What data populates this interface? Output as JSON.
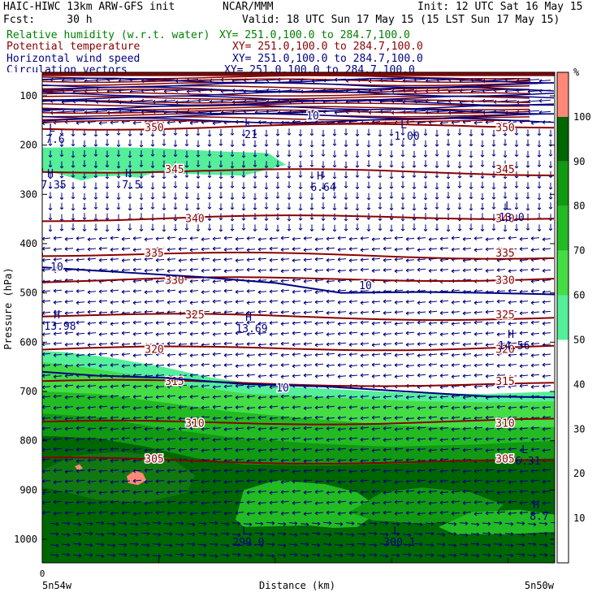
{
  "header": {
    "title_left": "HAIC-HIWC 13km ARW-GFS init",
    "org": "NCAR/MMM",
    "init": "Init: 12 UTC Sat 16 May 15",
    "fcst": "Fcst:     30 h",
    "valid": "Valid: 18 UTC Sun 17 May 15 (15 LST Sun 17 May 15)",
    "fields": [
      {
        "label": "Relative humidity (w.r.t. water)",
        "xy": "XY= 251.0,100.0 to 284.7,100.0",
        "color": "#008000"
      },
      {
        "label": "Potential temperature",
        "xy": "XY= 251.0,100.0 to 284.7,100.0",
        "color": "#8b0000"
      },
      {
        "label": "Horizontal wind speed",
        "xy": "XY= 251.0,100.0 to 284.7,100.0",
        "color": "#000080"
      },
      {
        "label": "Circulation vectors",
        "xy": "XY= 251.0,100.0 to 284.7,100.0",
        "color": "#000080"
      }
    ]
  },
  "chart_data": {
    "type": "heatmap",
    "title": "Relative humidity (w.r.t. water) cross section",
    "xlabel": "Distance (km)",
    "ylabel": "Pressure (hPa)",
    "x_start_label": "5n54w",
    "x_end_label": "5n50w",
    "x_zero": "0",
    "ylim": [
      1050,
      50
    ],
    "y_ticks": [
      100,
      200,
      300,
      400,
      500,
      600,
      700,
      800,
      900,
      1000
    ],
    "colorbar": {
      "unit": "%",
      "levels": [
        10,
        20,
        30,
        40,
        50,
        60,
        70,
        80,
        90,
        100
      ],
      "colors": [
        "#ffffff",
        "#ffffff",
        "#ffffff",
        "#ffffff",
        "#ffffff",
        "#55ee99",
        "#44dd44",
        "#22bb22",
        "#119911",
        "#006600",
        "#ff8877"
      ]
    },
    "theta_contours": [
      {
        "value": 350,
        "p": 165,
        "label": "350"
      },
      {
        "value": 345,
        "p": 250,
        "label": "345"
      },
      {
        "value": 340,
        "p": 350,
        "label": "340"
      },
      {
        "value": 335,
        "p": 420,
        "label": "335"
      },
      {
        "value": 330,
        "p": 475,
        "label": "330"
      },
      {
        "value": 325,
        "p": 545,
        "label": "325"
      },
      {
        "value": 320,
        "p": 615,
        "label": "320"
      },
      {
        "value": 315,
        "p": 680,
        "label": "315"
      },
      {
        "value": 310,
        "p": 765,
        "label": "310"
      },
      {
        "value": 305,
        "p": 838,
        "label": "305"
      }
    ],
    "wind_contours": [
      {
        "value": 10,
        "label": "10"
      }
    ],
    "annotations": [
      {
        "text": "H",
        "sub": "7.35"
      },
      {
        "text": "H",
        "sub": "7.5"
      },
      {
        "text": "H",
        "sub": "6.64"
      },
      {
        "text": "L",
        "sub": "7.6"
      },
      {
        "text": "L",
        "sub": "21"
      },
      {
        "text": "L",
        "sub": "1.00"
      },
      {
        "text": "L",
        "sub": "13.0"
      },
      {
        "text": "H",
        "sub": "13.98"
      },
      {
        "text": "H",
        "sub": "13.69"
      },
      {
        "text": "H",
        "sub": "14.56"
      },
      {
        "text": "L",
        "sub": "6.31"
      },
      {
        "text": "H",
        "sub": "8.7"
      },
      {
        "text": "L",
        "sub": "299.0"
      },
      {
        "text": "L",
        "sub": "300.1"
      }
    ]
  }
}
